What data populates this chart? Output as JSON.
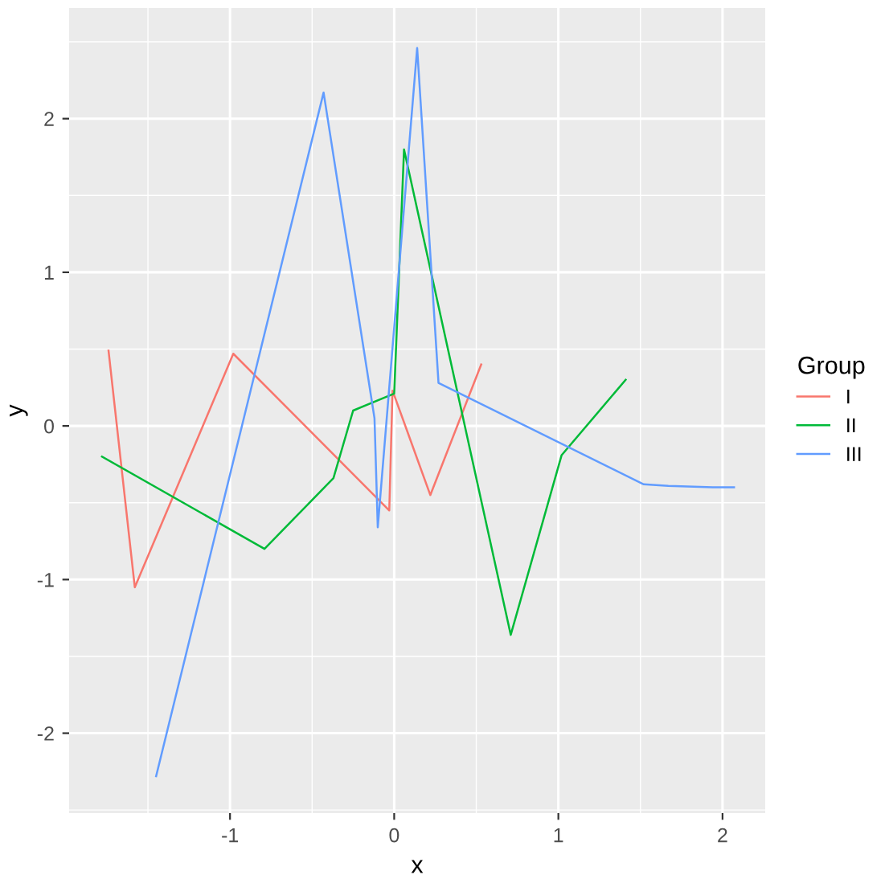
{
  "chart_data": {
    "type": "line",
    "xlabel": "x",
    "ylabel": "y",
    "legend_title": "Group",
    "legend": "right",
    "grid": true,
    "xlim": [
      -1.98,
      2.26
    ],
    "ylim": [
      -2.52,
      2.72
    ],
    "xticks": [
      -1,
      0,
      1,
      2
    ],
    "yticks": [
      -2,
      -1,
      0,
      1,
      2
    ],
    "series": [
      {
        "name": "I",
        "color": "#f8766d",
        "x": [
          -1.74,
          -1.58,
          -0.98,
          -0.03,
          -0.01,
          0.22,
          0.53
        ],
        "values": [
          0.49,
          -1.05,
          0.47,
          -0.55,
          0.23,
          -0.45,
          0.4
        ]
      },
      {
        "name": "II",
        "color": "#00ba38",
        "x": [
          -1.78,
          -0.79,
          -0.37,
          -0.25,
          0.0,
          0.06,
          0.71,
          1.02,
          1.41
        ],
        "values": [
          -0.2,
          -0.8,
          -0.34,
          0.1,
          0.21,
          1.8,
          -1.36,
          -0.19,
          0.3
        ]
      },
      {
        "name": "III",
        "color": "#619cff",
        "x": [
          -1.45,
          -0.43,
          -0.12,
          -0.1,
          0.14,
          0.27,
          1.52,
          1.67,
          1.94,
          2.07
        ],
        "values": [
          -2.28,
          2.17,
          0.05,
          -0.66,
          2.46,
          0.28,
          -0.38,
          -0.39,
          -0.4,
          -0.4
        ]
      }
    ]
  }
}
